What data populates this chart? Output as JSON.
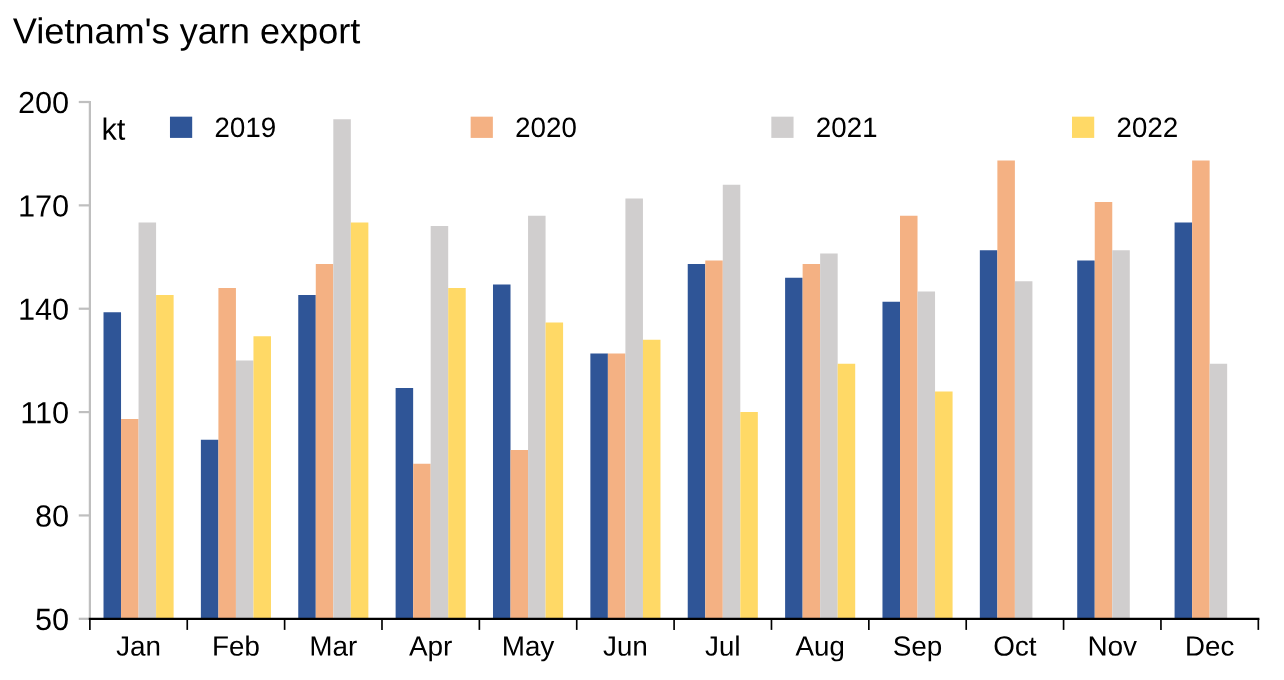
{
  "chart_data": {
    "type": "bar",
    "title": "Vietnam's yarn export",
    "ylabel": "kt",
    "categories": [
      "Jan",
      "Feb",
      "Mar",
      "Apr",
      "May",
      "Jun",
      "Jul",
      "Aug",
      "Sep",
      "Oct",
      "Nov",
      "Dec"
    ],
    "series": [
      {
        "name": "2019",
        "color": "#2f5597",
        "values": [
          139,
          102,
          144,
          117,
          147,
          127,
          153,
          149,
          142,
          157,
          154,
          165
        ]
      },
      {
        "name": "2020",
        "color": "#f4b183",
        "values": [
          108,
          146,
          153,
          95,
          99,
          127,
          154,
          153,
          167,
          183,
          171,
          183
        ]
      },
      {
        "name": "2021",
        "color": "#d0cece",
        "values": [
          165,
          125,
          195,
          164,
          167,
          172,
          176,
          156,
          145,
          148,
          157,
          124
        ]
      },
      {
        "name": "2022",
        "color": "#ffd966",
        "values": [
          144,
          132,
          165,
          146,
          136,
          131,
          110,
          124,
          116,
          null,
          null,
          null
        ]
      }
    ],
    "ylim": [
      50,
      200
    ],
    "yticks": [
      50,
      80,
      110,
      140,
      170,
      200
    ],
    "grid": false,
    "legend": "top"
  }
}
